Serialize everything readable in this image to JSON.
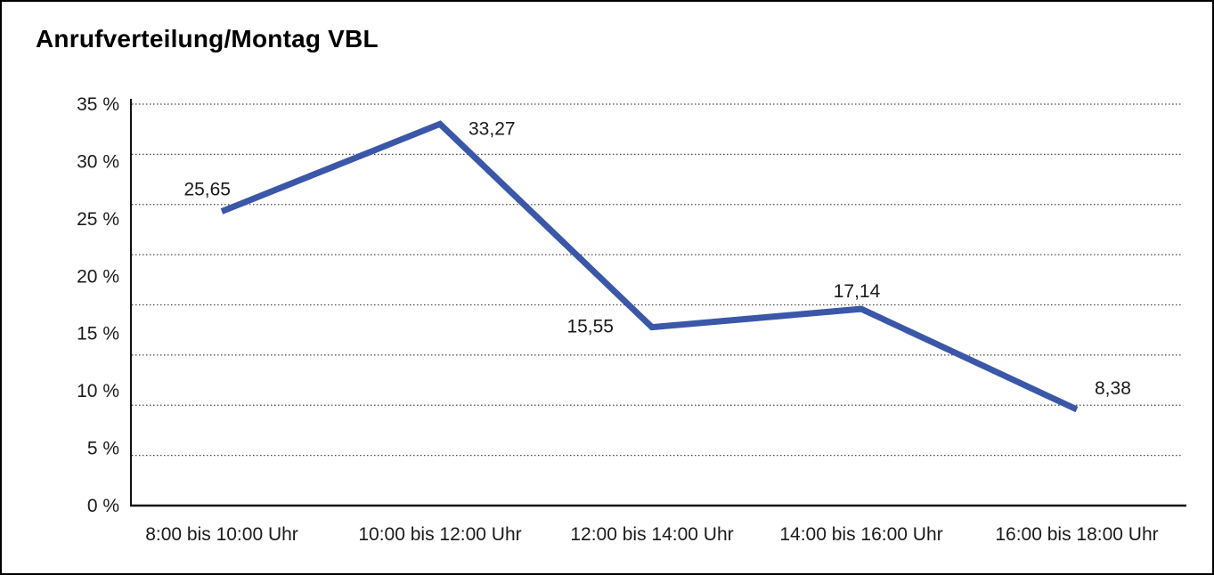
{
  "page": {
    "background": "#ffffff",
    "border_color": "#000000"
  },
  "chart_data": {
    "type": "line",
    "title": "Anrufverteilung/Montag VBL",
    "categories": [
      "8:00 bis 10:00 Uhr",
      "10:00 bis 12:00 Uhr",
      "12:00 bis 14:00 Uhr",
      "14:00 bis 16:00 Uhr",
      "16:00 bis 18:00 Uhr"
    ],
    "series": [
      {
        "name": "",
        "values": [
          25.65,
          33.27,
          15.55,
          17.14,
          8.38
        ]
      }
    ],
    "point_labels": [
      "25,65",
      "33,27",
      "15,55",
      "17,14",
      "8,38"
    ],
    "point_label_positions": [
      "above-left",
      "right",
      "left",
      "above",
      "above-right"
    ],
    "xlabel": "",
    "ylabel": "",
    "ylim": [
      0,
      35
    ],
    "y_ticks": [
      0,
      5,
      10,
      15,
      20,
      25,
      30,
      35
    ],
    "y_tick_labels": [
      "0 %",
      "5 %",
      "10 %",
      "15 %",
      "20 %",
      "25 %",
      "30 %",
      "35 %"
    ],
    "grid": "horizontal-dotted",
    "grid_line_count": 8,
    "legend": "none",
    "colors": {
      "line": "#3A57A8",
      "grid": "#4A4A4A",
      "axis": "#111111",
      "text": "#1A1A1A"
    }
  }
}
